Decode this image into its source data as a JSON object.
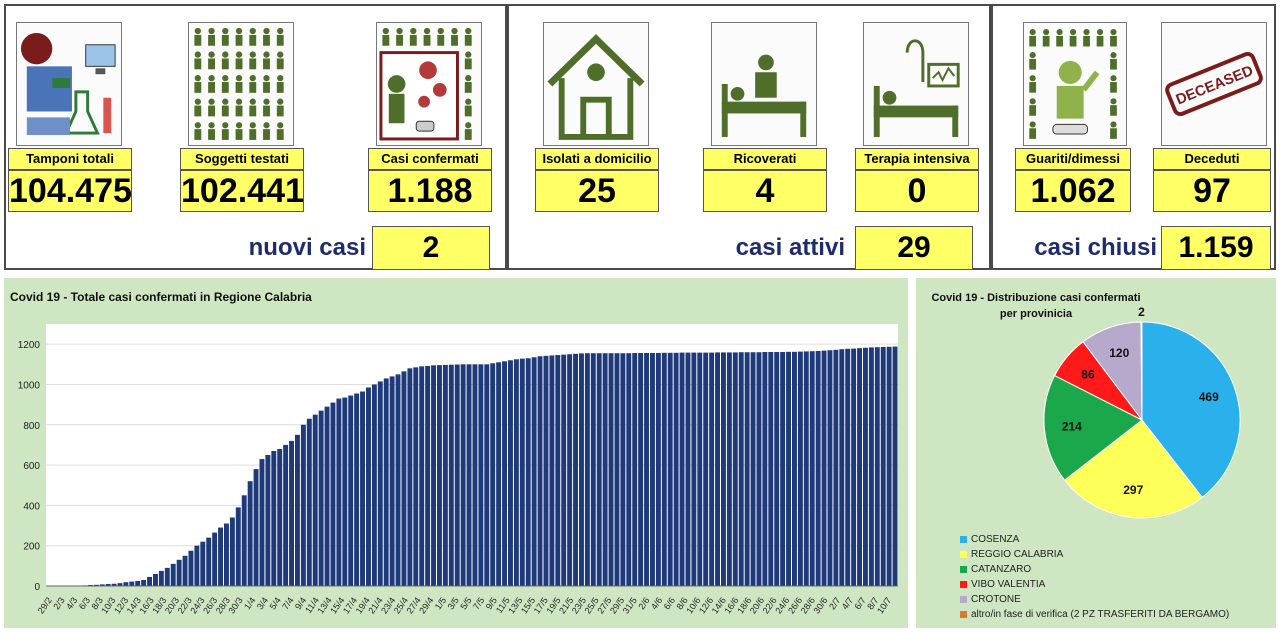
{
  "stats": [
    {
      "label": "Tamponi totali",
      "value": "104.475",
      "icon": "lab-equipment-icon"
    },
    {
      "label": "Soggetti testati",
      "value": "102.441",
      "icon": "people-grid-icon"
    },
    {
      "label": "Casi confermati",
      "value": "1.188",
      "icon": "infected-person-icon"
    },
    {
      "label": "Isolati a domicilio",
      "value": "25",
      "icon": "house-icon"
    },
    {
      "label": "Ricoverati",
      "value": "4",
      "icon": "hospital-bed-icon"
    },
    {
      "label": "Terapia intensiva",
      "value": "0",
      "icon": "icu-bed-icon"
    },
    {
      "label": "Guariti/dimessi",
      "value": "1.062",
      "icon": "recovered-person-icon"
    },
    {
      "label": "Deceduti",
      "value": "97",
      "icon": "deceased-stamp-icon"
    }
  ],
  "stamp_text": "DECEASED",
  "summaries": {
    "nuovi_label": "nuovi casi",
    "nuovi_value": "2",
    "attivi_label": "casi attivi",
    "attivi_value": "29",
    "chiusi_label": "casi chiusi",
    "chiusi_value": "1.159"
  },
  "colors": {
    "bar": "#1f3a7a",
    "highlight": "#ffff66",
    "panel_bg": "#cfe6c2",
    "summary_text": "#1f2c6b"
  },
  "chart_data": [
    {
      "type": "bar",
      "title": "Covid 19 - Totale casi confermati in Regione Calabria",
      "ylim": [
        0,
        1300
      ],
      "yticks": [
        0,
        200,
        400,
        600,
        800,
        1000,
        1200
      ],
      "x_tick_labels": [
        "29/2",
        "2/3",
        "4/3",
        "6/3",
        "8/3",
        "10/3",
        "12/3",
        "14/3",
        "16/3",
        "18/3",
        "20/3",
        "22/3",
        "24/3",
        "26/3",
        "28/3",
        "30/3",
        "1/4",
        "3/4",
        "5/4",
        "7/4",
        "9/4",
        "11/4",
        "13/4",
        "15/4",
        "17/4",
        "19/4",
        "21/4",
        "23/4",
        "25/4",
        "27/4",
        "29/4",
        "1/5",
        "3/5",
        "5/5",
        "7/5",
        "9/5",
        "11/5",
        "13/5",
        "15/5",
        "17/5",
        "19/5",
        "21/5",
        "23/5",
        "25/5",
        "27/5",
        "29/5",
        "31/5",
        "2/6",
        "4/6",
        "6/6",
        "8/6",
        "10/6",
        "12/6",
        "14/6",
        "16/6",
        "18/6",
        "20/6",
        "22/6",
        "24/6",
        "26/6",
        "28/6",
        "30/6",
        "2/7",
        "4/7",
        "6/7",
        "8/7",
        "10/7"
      ],
      "values": [
        1,
        1,
        1,
        1,
        1,
        2,
        3,
        5,
        6,
        8,
        10,
        11,
        14,
        19,
        22,
        25,
        30,
        45,
        60,
        75,
        90,
        110,
        130,
        150,
        175,
        200,
        220,
        240,
        265,
        290,
        310,
        340,
        390,
        450,
        520,
        580,
        630,
        650,
        670,
        680,
        700,
        720,
        750,
        800,
        830,
        850,
        870,
        890,
        910,
        930,
        935,
        945,
        955,
        965,
        985,
        1000,
        1015,
        1030,
        1040,
        1050,
        1065,
        1080,
        1085,
        1090,
        1092,
        1095,
        1096,
        1097,
        1098,
        1099,
        1100,
        1100,
        1100,
        1100,
        1100,
        1105,
        1110,
        1115,
        1120,
        1125,
        1128,
        1130,
        1135,
        1140,
        1142,
        1144,
        1146,
        1148,
        1150,
        1152,
        1154,
        1155,
        1155,
        1155,
        1155,
        1155,
        1155,
        1155,
        1155,
        1156,
        1156,
        1156,
        1156,
        1156,
        1157,
        1157,
        1157,
        1158,
        1158,
        1158,
        1158,
        1158,
        1158,
        1159,
        1159,
        1159,
        1159,
        1160,
        1160,
        1160,
        1160,
        1161,
        1161,
        1161,
        1161,
        1162,
        1162,
        1163,
        1164,
        1165,
        1166,
        1168,
        1170,
        1172,
        1175,
        1177,
        1178,
        1180,
        1182,
        1184,
        1185,
        1186,
        1187,
        1188
      ]
    },
    {
      "type": "pie",
      "title": "Covid 19 - Distribuzione casi confermati per provinicia",
      "slices": [
        {
          "name": "COSENZA",
          "value": 469,
          "color": "#2ab0ea"
        },
        {
          "name": "REGGIO CALABRIA",
          "value": 297,
          "color": "#ffff5a"
        },
        {
          "name": "CATANZARO",
          "value": 214,
          "color": "#1aa84a"
        },
        {
          "name": "VIBO VALENTIA",
          "value": 86,
          "color": "#ff1a1a"
        },
        {
          "name": "CROTONE",
          "value": 120,
          "color": "#b7a9cc"
        },
        {
          "name": "altro/in fase di verifica (2 PZ TRASFERITI DA BERGAMO)",
          "value": 2,
          "color": "#e07a2a"
        }
      ]
    }
  ]
}
